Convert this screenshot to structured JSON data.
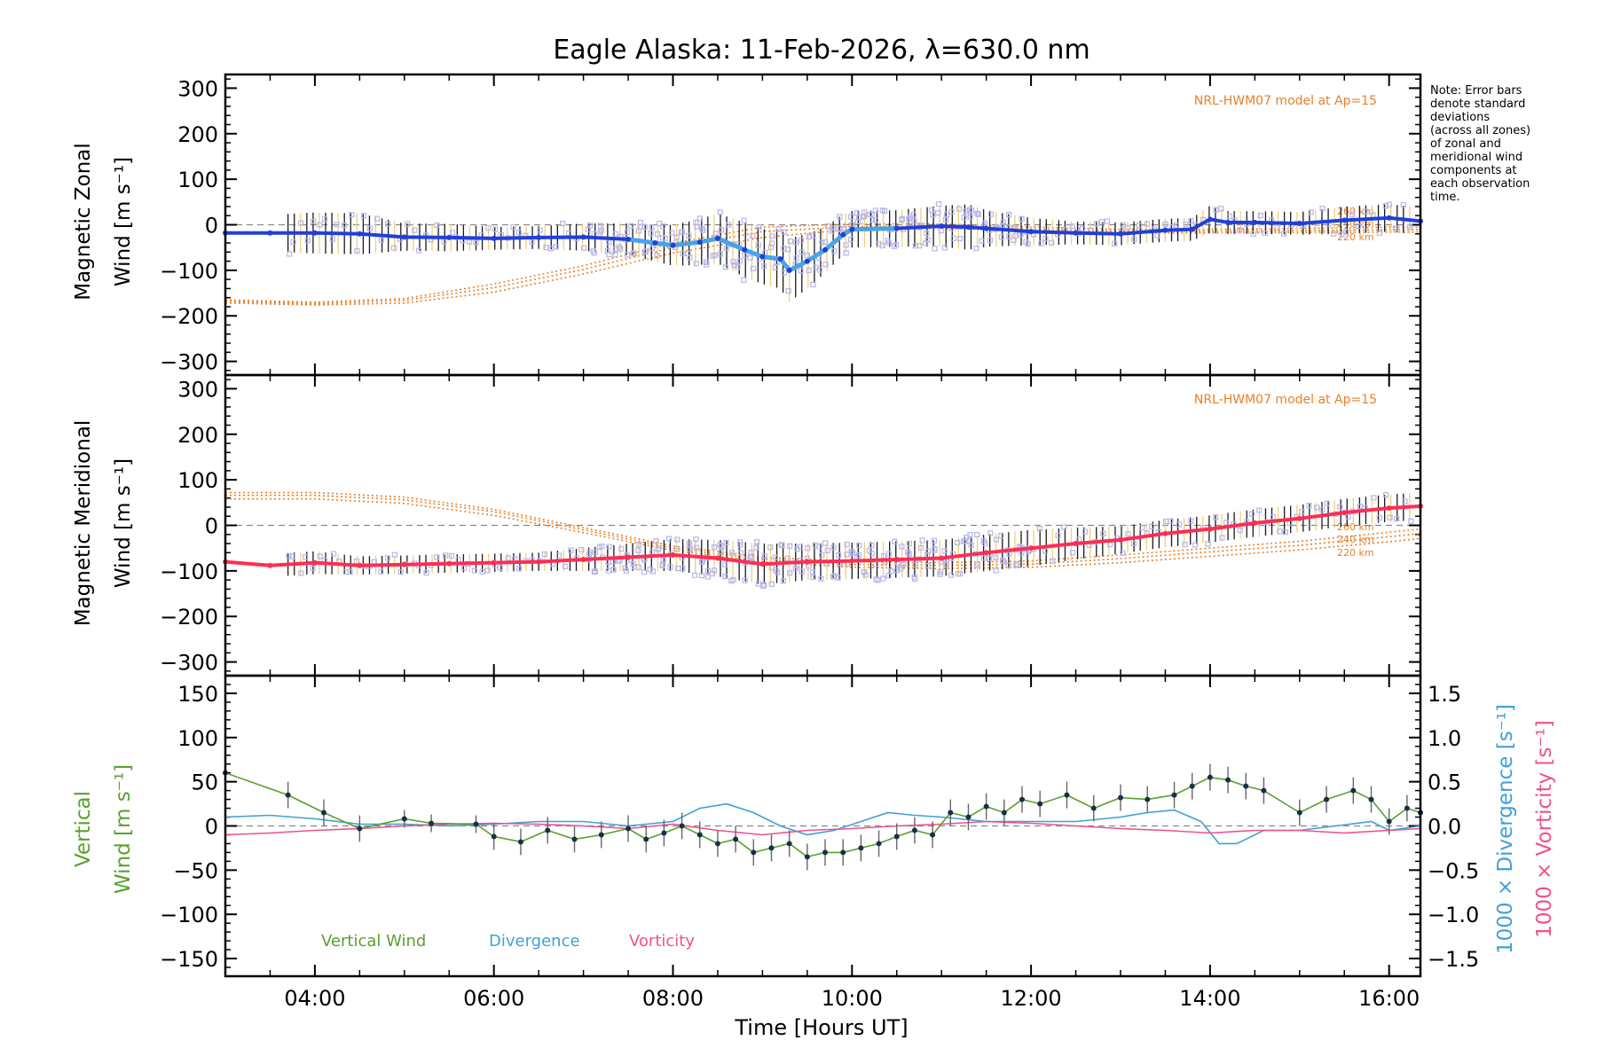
{
  "colors": {
    "model": "#e8802a",
    "zonal_dark": "#1f3fdc",
    "zonal_light": "#4aa3e8",
    "meridional": "#ff2d55",
    "vertical": "#5aa02c",
    "divergence": "#3fa0d8",
    "vorticity": "#f0508c",
    "zone_points": "#b8b6e8",
    "errbar": "#1a1a1a",
    "errbar_alt": "#f2cf7a"
  },
  "chart_data": {
    "type": "line",
    "title": "Eagle Alaska: 11-Feb-2026, λ=630.0 nm",
    "xlabel": "Time [Hours UT]",
    "xlim": [
      3.0,
      16.35
    ],
    "x_ticks": [
      4,
      6,
      8,
      10,
      12,
      14,
      16
    ],
    "x_tick_labels": [
      "04:00",
      "06:00",
      "08:00",
      "10:00",
      "12:00",
      "14:00",
      "16:00"
    ],
    "note": [
      "Note: Error bars",
      "denote standard",
      "deviations",
      "(across all zones)",
      "of zonal and",
      "meridional wind",
      "components at",
      "each observation",
      "time."
    ],
    "panels": [
      {
        "name": "zonal",
        "ylabel_line1": "Magnetic Zonal",
        "ylabel_line2": "Wind [m s⁻¹]",
        "ylim": [
          -330,
          330
        ],
        "y_ticks": [
          300,
          200,
          100,
          0,
          -100,
          -200,
          -300
        ],
        "y_tick_labels": [
          "300",
          "200",
          "100",
          "0",
          "−100",
          "−200",
          "−300"
        ],
        "model_label": "NRL-HWM07 model at Ap=15",
        "altitude_labels": [
          "260 km",
          "240 km",
          "220 km"
        ],
        "series": [
          {
            "name": "Zonal wind",
            "x": [
              3.0,
              3.5,
              4.0,
              4.5,
              5.0,
              5.5,
              6.0,
              6.5,
              7.0,
              7.5,
              7.8,
              8.0,
              8.3,
              8.5,
              8.8,
              9.0,
              9.2,
              9.3,
              9.5,
              9.7,
              9.9,
              10.0,
              10.5,
              11.0,
              11.3,
              11.5,
              12.0,
              12.5,
              13.0,
              13.5,
              13.8,
              14.0,
              14.2,
              14.5,
              15.0,
              15.5,
              16.0,
              16.35
            ],
            "values": [
              -18,
              -18,
              -18,
              -20,
              -27,
              -28,
              -30,
              -28,
              -27,
              -32,
              -40,
              -45,
              -38,
              -30,
              -55,
              -70,
              -75,
              -100,
              -80,
              -55,
              -22,
              -10,
              -8,
              -3,
              -5,
              -8,
              -15,
              -18,
              -20,
              -12,
              -10,
              12,
              5,
              5,
              3,
              10,
              15,
              8
            ],
            "error": [
              40,
              40,
              45,
              45,
              30,
              30,
              25,
              25,
              30,
              35,
              40,
              45,
              50,
              55,
              60,
              60,
              65,
              70,
              60,
              50,
              45,
              40,
              40,
              45,
              50,
              40,
              30,
              25,
              25,
              25,
              25,
              30,
              25,
              25,
              25,
              30,
              30,
              30
            ]
          },
          {
            "name": "HWM 260 km",
            "x": [
              3.0,
              4.0,
              5.0,
              6.0,
              7.0,
              8.0,
              9.0,
              10.0,
              11.0,
              12.0,
              13.0,
              14.0,
              15.0,
              16.0,
              16.35
            ],
            "values": [
              -165,
              -170,
              -162,
              -130,
              -90,
              -40,
              -5,
              2,
              2,
              -5,
              -10,
              -10,
              -8,
              -5,
              -5
            ]
          },
          {
            "name": "HWM 240 km",
            "x": [
              3.0,
              4.0,
              5.0,
              6.0,
              7.0,
              8.0,
              9.0,
              10.0,
              11.0,
              12.0,
              13.0,
              14.0,
              15.0,
              16.0,
              16.35
            ],
            "values": [
              -168,
              -173,
              -166,
              -138,
              -98,
              -50,
              -15,
              -4,
              -3,
              -10,
              -14,
              -14,
              -13,
              -11,
              -11
            ]
          },
          {
            "name": "HWM 220 km",
            "x": [
              3.0,
              4.0,
              5.0,
              6.0,
              7.0,
              8.0,
              9.0,
              10.0,
              11.0,
              12.0,
              13.0,
              14.0,
              15.0,
              16.0,
              16.35
            ],
            "values": [
              -172,
              -176,
              -172,
              -148,
              -108,
              -62,
              -28,
              -10,
              -8,
              -14,
              -18,
              -18,
              -17,
              -16,
              -16
            ]
          }
        ]
      },
      {
        "name": "meridional",
        "ylabel_line1": "Magnetic Meridional",
        "ylabel_line2": "Wind [m s⁻¹]",
        "ylim": [
          -330,
          330
        ],
        "y_ticks": [
          300,
          200,
          100,
          0,
          -100,
          -200,
          -300
        ],
        "y_tick_labels": [
          "300",
          "200",
          "100",
          "0",
          "−100",
          "−200",
          "−300"
        ],
        "model_label": "NRL-HWM07 model at Ap=15",
        "altitude_labels": [
          "260 km",
          "240 km",
          "220 km"
        ],
        "series": [
          {
            "name": "Meridional wind",
            "x": [
              3.0,
              3.5,
              4.0,
              4.5,
              5.0,
              5.5,
              6.0,
              6.5,
              7.0,
              7.5,
              8.0,
              8.5,
              9.0,
              9.5,
              10.0,
              10.5,
              11.0,
              11.5,
              12.0,
              12.5,
              13.0,
              13.5,
              14.0,
              14.5,
              15.0,
              15.5,
              16.0,
              16.35
            ],
            "values": [
              -80,
              -88,
              -82,
              -88,
              -86,
              -84,
              -82,
              -80,
              -75,
              -70,
              -65,
              -72,
              -85,
              -80,
              -78,
              -75,
              -72,
              -60,
              -50,
              -40,
              -32,
              -18,
              -8,
              5,
              15,
              28,
              38,
              42
            ],
            "error": [
              20,
              25,
              25,
              20,
              20,
              20,
              20,
              20,
              25,
              30,
              35,
              40,
              45,
              40,
              40,
              40,
              40,
              40,
              40,
              35,
              30,
              30,
              30,
              30,
              30,
              30,
              30,
              30
            ]
          },
          {
            "name": "HWM 260 km",
            "x": [
              3.0,
              4.0,
              5.0,
              6.0,
              7.0,
              8.0,
              9.0,
              10.0,
              11.0,
              12.0,
              13.0,
              14.0,
              15.0,
              16.0,
              16.35
            ],
            "values": [
              72,
              72,
              62,
              35,
              -5,
              -45,
              -70,
              -80,
              -82,
              -78,
              -65,
              -50,
              -35,
              -15,
              -8
            ]
          },
          {
            "name": "HWM 240 km",
            "x": [
              3.0,
              4.0,
              5.0,
              6.0,
              7.0,
              8.0,
              9.0,
              10.0,
              11.0,
              12.0,
              13.0,
              14.0,
              15.0,
              16.0,
              16.35
            ],
            "values": [
              66,
              66,
              56,
              30,
              -10,
              -50,
              -75,
              -86,
              -88,
              -85,
              -73,
              -58,
              -44,
              -25,
              -18
            ]
          },
          {
            "name": "HWM 220 km",
            "x": [
              3.0,
              4.0,
              5.0,
              6.0,
              7.0,
              8.0,
              9.0,
              10.0,
              11.0,
              12.0,
              13.0,
              14.0,
              15.0,
              16.0,
              16.35
            ],
            "values": [
              58,
              58,
              48,
              22,
              -16,
              -55,
              -80,
              -92,
              -95,
              -92,
              -82,
              -68,
              -54,
              -36,
              -29
            ]
          }
        ]
      },
      {
        "name": "vertical",
        "ylabel_line1": "Vertical",
        "ylabel_line2": "Wind [m s⁻¹]",
        "ylim": [
          -170,
          170
        ],
        "y_ticks": [
          150,
          100,
          50,
          0,
          -50,
          -100,
          -150
        ],
        "y_tick_labels": [
          "150",
          "100",
          "50",
          "0",
          "−50",
          "−100",
          "−150"
        ],
        "y2_label_1": "1000 × Divergence [s⁻¹]",
        "y2_label_2": "1000 × Vorticity [s⁻¹]",
        "y2lim": [
          -1.7,
          1.7
        ],
        "y2_ticks": [
          1.5,
          1.0,
          0.5,
          0.0,
          -0.5,
          -1.0,
          -1.5
        ],
        "y2_tick_labels": [
          "1.5",
          "1.0",
          "0.5",
          "0.0",
          "−0.5",
          "−1.0",
          "−1.5"
        ],
        "legend": [
          "Vertical Wind",
          "Divergence",
          "Vorticity"
        ],
        "series": [
          {
            "name": "Vertical Wind",
            "x": [
              3.0,
              3.7,
              4.1,
              4.5,
              5.0,
              5.3,
              5.8,
              6.0,
              6.3,
              6.6,
              6.9,
              7.2,
              7.5,
              7.7,
              7.9,
              8.1,
              8.3,
              8.5,
              8.7,
              8.9,
              9.1,
              9.3,
              9.5,
              9.7,
              9.9,
              10.1,
              10.3,
              10.5,
              10.7,
              10.9,
              11.1,
              11.3,
              11.5,
              11.7,
              11.9,
              12.1,
              12.4,
              12.7,
              13.0,
              13.3,
              13.6,
              13.8,
              14.0,
              14.2,
              14.4,
              14.6,
              15.0,
              15.3,
              15.6,
              15.8,
              16.0,
              16.2,
              16.35
            ],
            "values": [
              60,
              35,
              15,
              -3,
              8,
              3,
              2,
              -12,
              -18,
              -5,
              -15,
              -10,
              -3,
              -15,
              -8,
              0,
              -10,
              -20,
              -15,
              -30,
              -25,
              -20,
              -35,
              -30,
              -30,
              -25,
              -20,
              -12,
              -5,
              -10,
              15,
              10,
              22,
              15,
              30,
              25,
              35,
              20,
              32,
              30,
              35,
              45,
              55,
              52,
              45,
              40,
              15,
              30,
              40,
              30,
              5,
              20,
              15
            ],
            "error": [
              15,
              15,
              15,
              15,
              10,
              10,
              10,
              15,
              15,
              15,
              15,
              15,
              15,
              15,
              15,
              15,
              15,
              15,
              15,
              15,
              15,
              15,
              15,
              15,
              15,
              15,
              15,
              15,
              15,
              15,
              15,
              15,
              15,
              15,
              15,
              15,
              15,
              15,
              15,
              15,
              15,
              15,
              15,
              15,
              15,
              15,
              15,
              15,
              15,
              15,
              15,
              15,
              15
            ]
          },
          {
            "name": "Divergence",
            "x": [
              3.0,
              3.5,
              4.0,
              4.5,
              5.0,
              5.5,
              6.0,
              6.5,
              7.0,
              7.5,
              8.0,
              8.3,
              8.6,
              8.9,
              9.2,
              9.5,
              9.8,
              10.1,
              10.4,
              10.7,
              11.0,
              11.5,
              12.0,
              12.5,
              13.0,
              13.3,
              13.6,
              13.9,
              14.1,
              14.3,
              14.6,
              15.0,
              15.4,
              15.8,
              16.0,
              16.35
            ],
            "values": [
              0.1,
              0.12,
              0.08,
              0.02,
              0.02,
              0.0,
              0.02,
              0.05,
              0.05,
              0.0,
              0.05,
              0.2,
              0.25,
              0.15,
              0.0,
              -0.1,
              -0.05,
              0.05,
              0.15,
              0.12,
              0.1,
              0.05,
              0.05,
              0.05,
              0.1,
              0.15,
              0.18,
              0.05,
              -0.2,
              -0.2,
              -0.05,
              -0.05,
              0.0,
              0.05,
              -0.05,
              0.0
            ]
          },
          {
            "name": "Vorticity",
            "x": [
              3.0,
              3.5,
              4.0,
              4.5,
              5.0,
              5.5,
              6.0,
              6.5,
              7.0,
              7.5,
              8.0,
              8.5,
              9.0,
              9.5,
              10.0,
              10.5,
              11.0,
              11.5,
              12.0,
              12.5,
              13.0,
              13.5,
              14.0,
              14.5,
              15.0,
              15.5,
              16.0,
              16.35
            ],
            "values": [
              -0.1,
              -0.08,
              -0.05,
              -0.03,
              0.0,
              0.02,
              0.03,
              0.02,
              0.0,
              -0.03,
              0.02,
              -0.05,
              -0.1,
              -0.05,
              -0.03,
              0.0,
              0.02,
              0.05,
              0.03,
              0.0,
              -0.03,
              -0.05,
              -0.08,
              -0.05,
              -0.05,
              -0.08,
              -0.05,
              -0.03
            ]
          }
        ]
      }
    ]
  }
}
